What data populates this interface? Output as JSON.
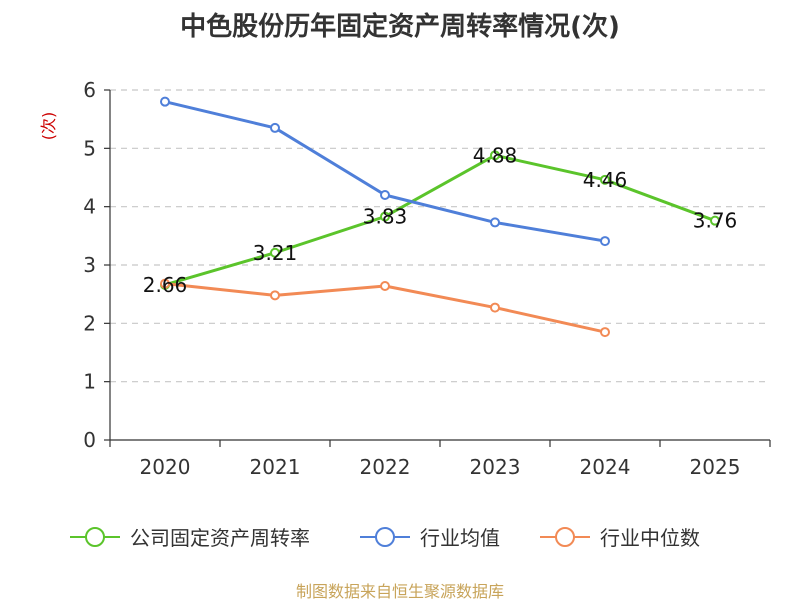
{
  "header": {
    "title": "中色股份历年固定资产周转率情况(次)"
  },
  "source": "制图数据来自恒生聚源数据库",
  "chart_data": {
    "type": "line",
    "title": "中色股份历年固定资产周转率情况(次)",
    "ylabel": "(次)",
    "xlabel": "",
    "categories": [
      "2020",
      "2021",
      "2022",
      "2023",
      "2024",
      "2025"
    ],
    "ylim": [
      0,
      6
    ],
    "yticks": [
      0,
      1,
      2,
      3,
      4,
      5,
      6
    ],
    "grid": true,
    "legend_position": "bottom",
    "series": [
      {
        "name": "公司固定资产周转率",
        "color": "#5bc42b",
        "values": [
          2.66,
          3.21,
          3.83,
          4.88,
          4.46,
          3.76
        ],
        "labels": [
          "2.66",
          "3.21",
          "3.83",
          "4.88",
          "4.46",
          "3.76"
        ]
      },
      {
        "name": "行业均值",
        "color": "#4f7fd9",
        "values": [
          5.8,
          5.35,
          4.2,
          3.73,
          3.41,
          null
        ]
      },
      {
        "name": "行业中位数",
        "color": "#f28a55",
        "values": [
          2.68,
          2.48,
          2.64,
          2.27,
          1.85,
          null
        ]
      }
    ]
  }
}
